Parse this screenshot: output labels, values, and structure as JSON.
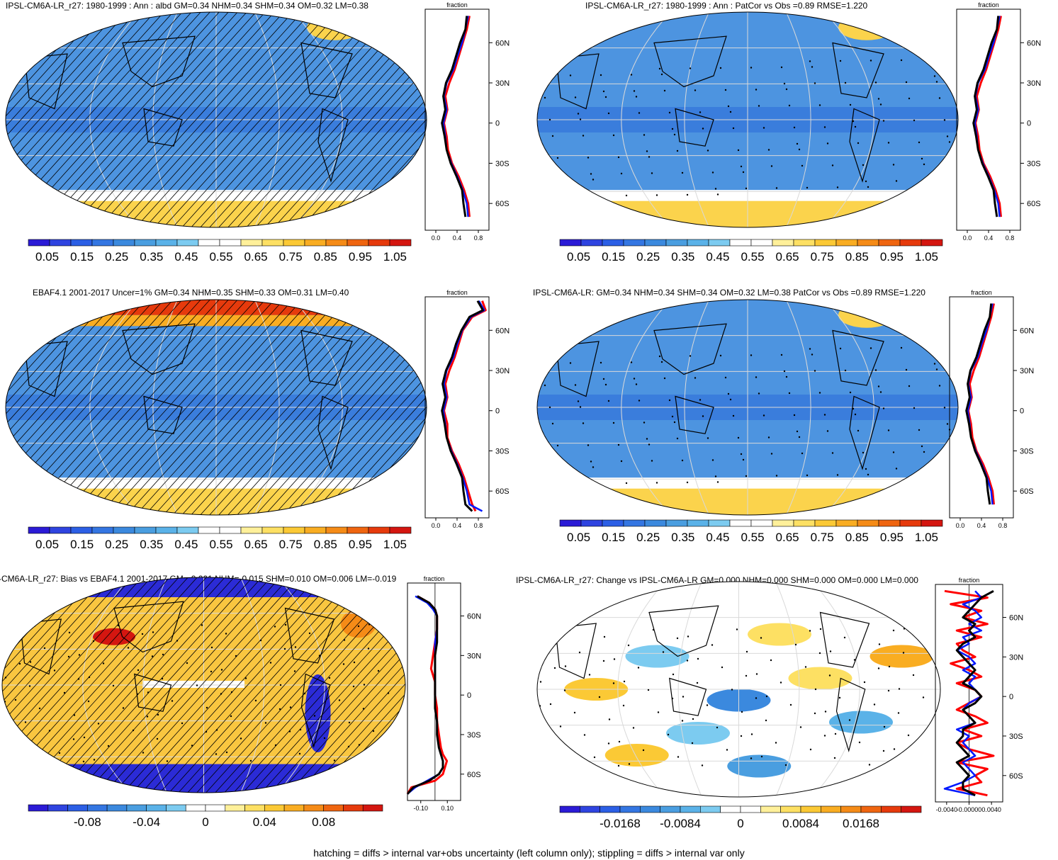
{
  "footer": "hatching = diffs > internal var+obs uncertainty (left column only); stippling = diffs > internal var only",
  "palettes": {
    "albedo": [
      "#2b1bd6",
      "#2f44e0",
      "#2c5fe5",
      "#3476e2",
      "#3b89de",
      "#4a9ee0",
      "#5ab2e8",
      "#7ccbf0",
      "#ffffff",
      "#ffffff",
      "#fff09a",
      "#fde063",
      "#fbc935",
      "#f9ad22",
      "#f58b17",
      "#ef6510",
      "#e63a0c",
      "#d41610"
    ],
    "diff": [
      "#2b1bd6",
      "#2f44e0",
      "#2c5fe5",
      "#3476e2",
      "#3b89de",
      "#4a9ee0",
      "#5ab2e8",
      "#7ccbf0",
      "#ffffff",
      "#ffffff",
      "#fff09a",
      "#fde063",
      "#fbc935",
      "#f9ad22",
      "#f58b17",
      "#ef6510",
      "#e63a0c",
      "#d41610"
    ]
  },
  "colors": {
    "ocean_albedo": "#4d94e0",
    "ocean_albedo_tropics": "#3a7ddc",
    "ice": "#fbd34c",
    "bias_pos": "#f9c640",
    "bias_neg": "#2b2bd6",
    "grid": "#d9d9d9",
    "model_line": "#ff0000",
    "obs_line": "#000000",
    "ocean_line": "#0018ff"
  },
  "panels": [
    {
      "id": "model-climatology",
      "title": "IPSL-CM6A-LR_r27: 1980-1999 : Ann : albd GM=0.34 NHM=0.34 SHM=0.34 OM=0.32 LM=0.38",
      "hatching": true,
      "stippling": false,
      "kind": "albedo",
      "colorbar_labels": [
        "0.05",
        "0.15",
        "0.25",
        "0.35",
        "0.45",
        "0.55",
        "0.65",
        "0.75",
        "0.85",
        "0.95",
        "1.05"
      ],
      "chart_data": {
        "type": "line",
        "title": "fraction",
        "xlim": [
          0,
          0.95
        ],
        "xticks": [
          "0.0",
          "0.4",
          "0.8"
        ],
        "yticks": [
          "60N",
          "30N",
          "0",
          "30S",
          "60S"
        ],
        "lat": [
          80,
          70,
          60,
          50,
          40,
          30,
          20,
          10,
          0,
          -10,
          -20,
          -30,
          -40,
          -50,
          -60,
          -70
        ],
        "series": [
          {
            "values": [
              0.66,
              0.62,
              0.56,
              0.5,
              0.44,
              0.36,
              0.3,
              0.33,
              0.28,
              0.32,
              0.34,
              0.4,
              0.5,
              0.58,
              0.64,
              0.66
            ]
          },
          {
            "values": [
              0.64,
              0.6,
              0.55,
              0.48,
              0.42,
              0.32,
              0.28,
              0.32,
              0.27,
              0.3,
              0.32,
              0.39,
              0.48,
              0.56,
              0.62,
              0.64
            ]
          },
          {
            "values": [
              0.62,
              0.6,
              0.52,
              0.46,
              0.4,
              0.31,
              0.27,
              0.3,
              0.25,
              0.29,
              0.32,
              0.38,
              0.47,
              0.55,
              0.57,
              0.6
            ]
          }
        ]
      }
    },
    {
      "id": "model-vs-obs-climatology",
      "title": "IPSL-CM6A-LR_r27: 1980-1999 : Ann : PatCor vs Obs =0.89 RMSE=1.220",
      "hatching": false,
      "stippling": true,
      "kind": "albedo",
      "colorbar_labels": [
        "0.05",
        "0.15",
        "0.25",
        "0.35",
        "0.45",
        "0.55",
        "0.65",
        "0.75",
        "0.85",
        "0.95",
        "1.05"
      ],
      "chart_data": {
        "type": "line",
        "title": "fraction",
        "xlim": [
          0,
          0.95
        ],
        "xticks": [
          "0.0",
          "0.4",
          "0.8"
        ],
        "yticks": [
          "60N",
          "30N",
          "0",
          "30S",
          "60S"
        ],
        "lat": [
          80,
          70,
          60,
          50,
          40,
          30,
          20,
          10,
          0,
          -10,
          -20,
          -30,
          -40,
          -50,
          -60,
          -70
        ],
        "series": [
          {
            "values": [
              0.66,
              0.62,
              0.56,
              0.5,
              0.44,
              0.36,
              0.3,
              0.33,
              0.28,
              0.32,
              0.34,
              0.4,
              0.5,
              0.58,
              0.64,
              0.66
            ]
          },
          {
            "values": [
              0.64,
              0.6,
              0.55,
              0.48,
              0.42,
              0.32,
              0.28,
              0.32,
              0.27,
              0.3,
              0.32,
              0.39,
              0.48,
              0.56,
              0.62,
              0.64
            ]
          },
          {
            "values": [
              0.62,
              0.6,
              0.52,
              0.46,
              0.4,
              0.31,
              0.27,
              0.3,
              0.25,
              0.29,
              0.32,
              0.38,
              0.47,
              0.55,
              0.57,
              0.6
            ]
          }
        ]
      }
    },
    {
      "id": "observations",
      "title": "EBAF4.1 2001-2017 Uncer=1% GM=0.34 NHM=0.35 SHM=0.33 OM=0.31 LM=0.40",
      "hatching": true,
      "stippling": false,
      "kind": "obs",
      "colorbar_labels": [
        "0.05",
        "0.15",
        "0.25",
        "0.35",
        "0.45",
        "0.55",
        "0.65",
        "0.75",
        "0.85",
        "0.95",
        "1.05"
      ],
      "chart_data": {
        "type": "line",
        "title": "fraction",
        "xlim": [
          0,
          0.95
        ],
        "xticks": [
          "0.0",
          "0.4",
          "0.8"
        ],
        "yticks": [
          "60N",
          "30N",
          "0",
          "30S",
          "60S"
        ],
        "lat": [
          82,
          75,
          70,
          60,
          50,
          40,
          30,
          20,
          10,
          0,
          -10,
          -20,
          -30,
          -40,
          -50,
          -60,
          -70,
          -75
        ],
        "series": [
          {
            "values": [
              0.85,
              0.9,
              0.7,
              0.56,
              0.5,
              0.44,
              0.36,
              0.3,
              0.33,
              0.28,
              0.33,
              0.33,
              0.4,
              0.5,
              0.58,
              0.64,
              0.7,
              0.75
            ]
          },
          {
            "values": [
              0.8,
              0.88,
              0.68,
              0.55,
              0.48,
              0.42,
              0.32,
              0.28,
              0.32,
              0.27,
              0.3,
              0.32,
              0.39,
              0.48,
              0.56,
              0.62,
              0.66,
              0.85
            ]
          },
          {
            "values": [
              0.78,
              0.86,
              0.66,
              0.54,
              0.46,
              0.4,
              0.31,
              0.26,
              0.3,
              0.25,
              0.29,
              0.32,
              0.38,
              0.47,
              0.55,
              0.57,
              0.6,
              0.7
            ]
          }
        ]
      }
    },
    {
      "id": "model-climatology-ensemble",
      "title": "IPSL-CM6A-LR: GM=0.34 NHM=0.34 SHM=0.34 OM=0.32 LM=0.38 PatCor vs Obs =0.89 RMSE=1.220",
      "hatching": false,
      "stippling": true,
      "kind": "albedo",
      "colorbar_labels": [
        "0.05",
        "0.15",
        "0.25",
        "0.35",
        "0.45",
        "0.55",
        "0.65",
        "0.75",
        "0.85",
        "0.95",
        "1.05"
      ],
      "chart_data": {
        "type": "line",
        "title": "fraction",
        "xlim": [
          0,
          0.95
        ],
        "xticks": [
          "0.0",
          "0.4",
          "0.8"
        ],
        "yticks": [
          "60N",
          "30N",
          "0",
          "30S",
          "60S"
        ],
        "lat": [
          80,
          70,
          60,
          50,
          40,
          30,
          20,
          10,
          0,
          -10,
          -20,
          -30,
          -40,
          -50,
          -60,
          -70
        ],
        "series": [
          {
            "values": [
              0.66,
              0.62,
              0.56,
              0.5,
              0.44,
              0.36,
              0.3,
              0.33,
              0.28,
              0.32,
              0.34,
              0.4,
              0.5,
              0.58,
              0.64,
              0.66
            ]
          },
          {
            "values": [
              0.64,
              0.6,
              0.55,
              0.48,
              0.42,
              0.32,
              0.28,
              0.32,
              0.27,
              0.3,
              0.32,
              0.39,
              0.48,
              0.56,
              0.62,
              0.64
            ]
          },
          {
            "values": [
              0.62,
              0.6,
              0.52,
              0.46,
              0.4,
              0.31,
              0.27,
              0.3,
              0.25,
              0.29,
              0.32,
              0.38,
              0.47,
              0.55,
              0.57,
              0.6
            ]
          }
        ]
      }
    },
    {
      "id": "bias",
      "title": "-CM6A-LR_r27: Bias vs EBAF4.1 2001-2017 GM=-0.001 NHM=-0.015 SHM=0.010 OM=0.006 LM=-0.019",
      "hatching": true,
      "stippling": true,
      "kind": "bias",
      "colorbar_labels": [
        "-0.08",
        "-0.04",
        "0",
        "0.04",
        "0.08"
      ],
      "chart_data": {
        "type": "line",
        "title": "fraction",
        "xlim": [
          -0.14,
          0.13
        ],
        "xticks": [
          "-0.10",
          "0.10"
        ],
        "yticks": [
          "60N",
          "30N",
          "0",
          "30S",
          "60S"
        ],
        "lat": [
          75,
          70,
          65,
          60,
          50,
          40,
          30,
          20,
          10,
          0,
          -10,
          -20,
          -30,
          -40,
          -45,
          -50,
          -55,
          -60,
          -65,
          -70,
          -75
        ],
        "series": [
          {
            "values": [
              -0.09,
              -0.03,
              0.0,
              0.01,
              0.01,
              0.0,
              -0.01,
              -0.02,
              0.0,
              0.0,
              0.01,
              0.01,
              0.02,
              0.03,
              0.04,
              0.06,
              0.05,
              0.04,
              0.0,
              -0.12,
              -0.14
            ]
          },
          {
            "values": [
              -0.1,
              -0.04,
              -0.01,
              0.01,
              0.01,
              0.0,
              0.0,
              0.0,
              0.0,
              0.0,
              0.0,
              0.01,
              0.01,
              0.02,
              0.03,
              0.04,
              0.04,
              0.02,
              -0.04,
              -0.1,
              -0.14
            ]
          },
          {
            "values": [
              -0.09,
              -0.03,
              0.0,
              0.01,
              0.01,
              0.01,
              0.0,
              0.0,
              0.0,
              0.0,
              0.0,
              0.01,
              0.01,
              0.02,
              0.03,
              0.04,
              0.04,
              0.02,
              -0.03,
              -0.11,
              -0.14
            ]
          }
        ]
      }
    },
    {
      "id": "change",
      "title": "IPSL-CM6A-LR_r27: Change vs IPSL-CM6A-LR GM=0.000 NHM=0.000 SHM=0.000 OM=0.000 LM=0.000",
      "hatching": false,
      "stippling": true,
      "kind": "change",
      "colorbar_labels": [
        "-0.0168",
        "-0.0084",
        "0",
        "0.0084",
        "0.0168"
      ],
      "chart_data": {
        "type": "line",
        "title": "fraction",
        "xlim": [
          -0.0055,
          0.0055
        ],
        "xticks": [
          "-0.0040",
          "-0.00000",
          "0.0040"
        ],
        "yticks": [
          "60N",
          "30N",
          "0",
          "30S",
          "60S"
        ],
        "lat": [
          80,
          75,
          70,
          65,
          60,
          55,
          50,
          45,
          40,
          35,
          30,
          25,
          20,
          15,
          10,
          5,
          0,
          -5,
          -10,
          -15,
          -20,
          -25,
          -30,
          -35,
          -40,
          -45,
          -50,
          -55,
          -60,
          -65,
          -70,
          -75
        ],
        "series": [
          {
            "values": [
              -0.004,
              0.003,
              -0.003,
              0.002,
              -0.001,
              0.003,
              -0.002,
              0.002,
              -0.002,
              -0.001,
              0.001,
              -0.003,
              0.0,
              0.002,
              -0.002,
              0.001,
              0.002,
              0.0,
              -0.002,
              0.001,
              0.003,
              -0.001,
              0.002,
              -0.002,
              0.0,
              0.004,
              -0.002,
              0.003,
              0.001,
              0.002,
              -0.002,
              0.003
            ]
          },
          {
            "values": [
              0.001,
              0.002,
              -0.001,
              0.001,
              0.002,
              0.0,
              0.002,
              -0.001,
              0.0,
              -0.002,
              0.0,
              0.001,
              -0.001,
              0.001,
              0.0,
              0.001,
              0.002,
              0.0,
              -0.001,
              0.0,
              0.001,
              -0.002,
              0.0,
              -0.001,
              0.0,
              0.001,
              -0.001,
              0.0,
              0.001,
              -0.001,
              -0.004,
              0.001
            ]
          },
          {
            "values": [
              0.004,
              0.002,
              0.001,
              0.0,
              -0.001,
              0.001,
              0.0,
              0.001,
              -0.001,
              -0.002,
              -0.001,
              0.0,
              0.001,
              0.0,
              -0.001,
              0.001,
              0.002,
              0.001,
              -0.001,
              0.0,
              0.001,
              -0.001,
              -0.001,
              -0.002,
              -0.001,
              0.0,
              -0.002,
              -0.001,
              0.0,
              -0.001,
              -0.001,
              0.001
            ]
          }
        ]
      }
    }
  ]
}
